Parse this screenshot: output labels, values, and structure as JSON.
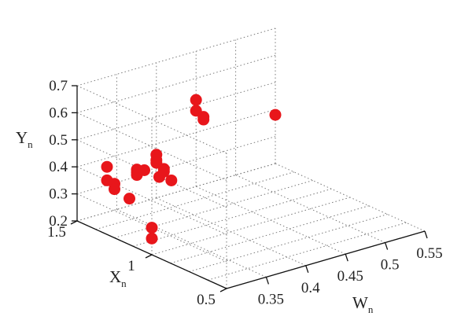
{
  "chart_data": {
    "type": "scatter",
    "title": "",
    "x_axis": {
      "label": "W",
      "label_sub": "n",
      "range": [
        0.3,
        0.55
      ],
      "ticks": [
        "0.35",
        "0.4",
        "0.45",
        "0.5",
        "0.55"
      ],
      "tick_values": [
        0.35,
        0.4,
        0.45,
        0.5,
        0.55
      ]
    },
    "y_axis": {
      "label": "X",
      "label_sub": "n",
      "range": [
        0.5,
        1.5
      ],
      "ticks": [
        "1.5",
        "1",
        "0.5"
      ],
      "tick_values": [
        1.5,
        1,
        0.5
      ]
    },
    "z_axis": {
      "label": "Y",
      "label_sub": "n",
      "range": [
        0.2,
        0.7
      ],
      "ticks": [
        "0.2",
        "0.3",
        "0.4",
        "0.5",
        "0.6",
        "0.7"
      ],
      "tick_values": [
        0.2,
        0.3,
        0.4,
        0.5,
        0.6,
        0.7
      ]
    },
    "grid": true,
    "marker_color": "#e8161b",
    "points": [
      {
        "w": 0.3,
        "x": 1.3,
        "z": 0.45
      },
      {
        "w": 0.3,
        "x": 1.3,
        "z": 0.4
      },
      {
        "w": 0.3,
        "x": 1.25,
        "z": 0.4
      },
      {
        "w": 0.3,
        "x": 1.25,
        "z": 0.38
      },
      {
        "w": 0.3,
        "x": 1.15,
        "z": 0.37
      },
      {
        "w": 0.3,
        "x": 1.0,
        "z": 0.3
      },
      {
        "w": 0.3,
        "x": 1.1,
        "z": 0.47
      },
      {
        "w": 0.3,
        "x": 1.1,
        "z": 0.48
      },
      {
        "w": 0.3,
        "x": 1.1,
        "z": 0.49
      },
      {
        "w": 0.3,
        "x": 1.05,
        "z": 0.5
      },
      {
        "w": 0.3,
        "x": 0.95,
        "z": 0.5
      },
      {
        "w": 0.3,
        "x": 1.0,
        "z": 0.26
      },
      {
        "w": 0.4,
        "x": 1.5,
        "z": 0.36
      },
      {
        "w": 0.4,
        "x": 1.5,
        "z": 0.34
      },
      {
        "w": 0.4,
        "x": 1.5,
        "z": 0.33
      },
      {
        "w": 0.4,
        "x": 1.45,
        "z": 0.32
      },
      {
        "w": 0.4,
        "x": 1.45,
        "z": 0.31
      },
      {
        "w": 0.4,
        "x": 1.4,
        "z": 0.29
      },
      {
        "w": 0.45,
        "x": 1.5,
        "z": 0.52
      },
      {
        "w": 0.45,
        "x": 1.5,
        "z": 0.48
      },
      {
        "w": 0.45,
        "x": 1.45,
        "z": 0.47
      },
      {
        "w": 0.45,
        "x": 1.45,
        "z": 0.46
      },
      {
        "w": 0.55,
        "x": 1.5,
        "z": 0.38
      }
    ]
  }
}
